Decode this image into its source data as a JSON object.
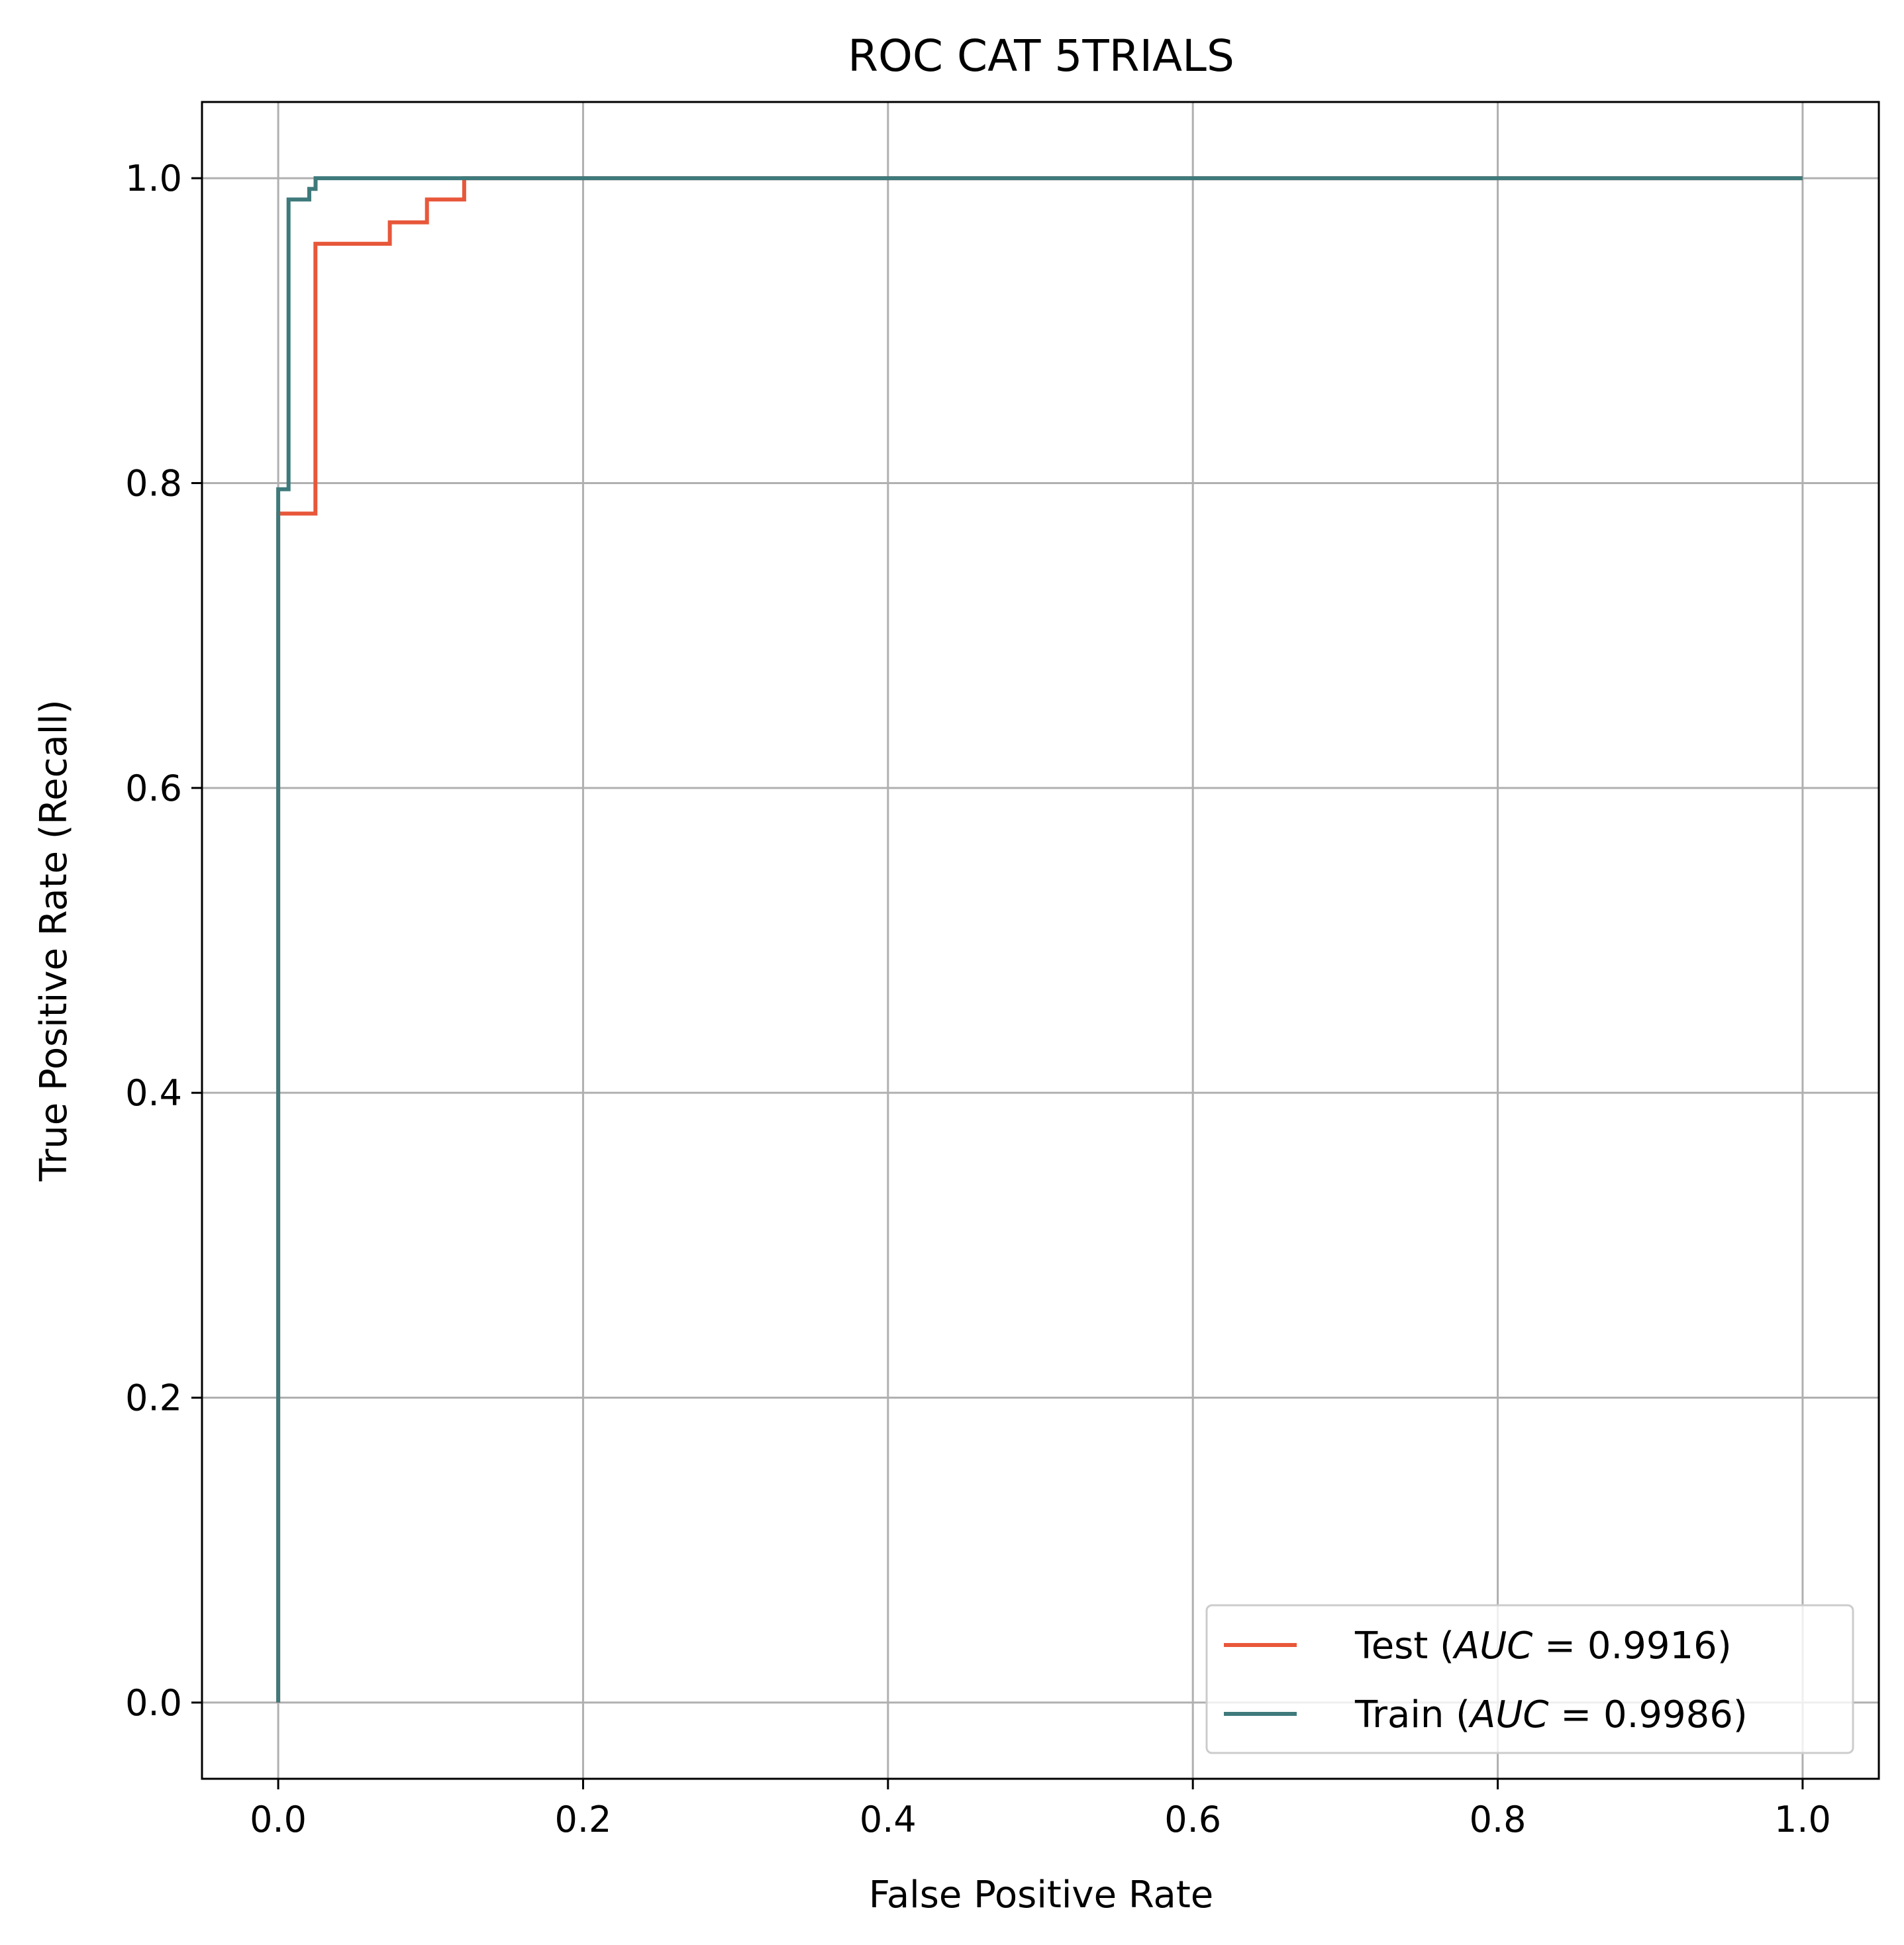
{
  "chart_data": {
    "type": "line",
    "title": "ROC CAT 5TRIALS",
    "xlabel": "False Positive Rate",
    "ylabel": "True Positive Rate (Recall)",
    "xlim": [
      -0.05,
      1.05
    ],
    "ylim": [
      -0.05,
      1.05
    ],
    "xticks": [
      0.0,
      0.2,
      0.4,
      0.6,
      0.8,
      1.0
    ],
    "yticks": [
      0.0,
      0.2,
      0.4,
      0.6,
      0.8,
      1.0
    ],
    "xtick_labels": [
      "0.0",
      "0.2",
      "0.4",
      "0.6",
      "0.8",
      "1.0"
    ],
    "ytick_labels": [
      "0.0",
      "0.2",
      "0.4",
      "0.6",
      "0.8",
      "1.0"
    ],
    "grid": true,
    "legend_position": "lower-right",
    "series": [
      {
        "name": "Test",
        "auc_label": "AUC",
        "auc_value": "0.9916",
        "color": "#e8573a",
        "x": [
          0.0,
          0.0,
          0.0,
          0.0244,
          0.0244,
          0.0732,
          0.0732,
          0.0976,
          0.0976,
          0.122,
          0.122,
          1.0
        ],
        "y": [
          0.0,
          0.78,
          0.78,
          0.78,
          0.957,
          0.957,
          0.971,
          0.971,
          0.986,
          0.986,
          1.0,
          1.0
        ]
      },
      {
        "name": "Train",
        "auc_label": "AUC",
        "auc_value": "0.9986",
        "color": "#3e7a7c",
        "x": [
          0.0,
          0.0,
          0.0068,
          0.0068,
          0.0204,
          0.0204,
          0.0245,
          0.0245,
          1.0
        ],
        "y": [
          0.0,
          0.796,
          0.796,
          0.986,
          0.986,
          0.993,
          0.993,
          1.0,
          1.0
        ]
      }
    ]
  }
}
